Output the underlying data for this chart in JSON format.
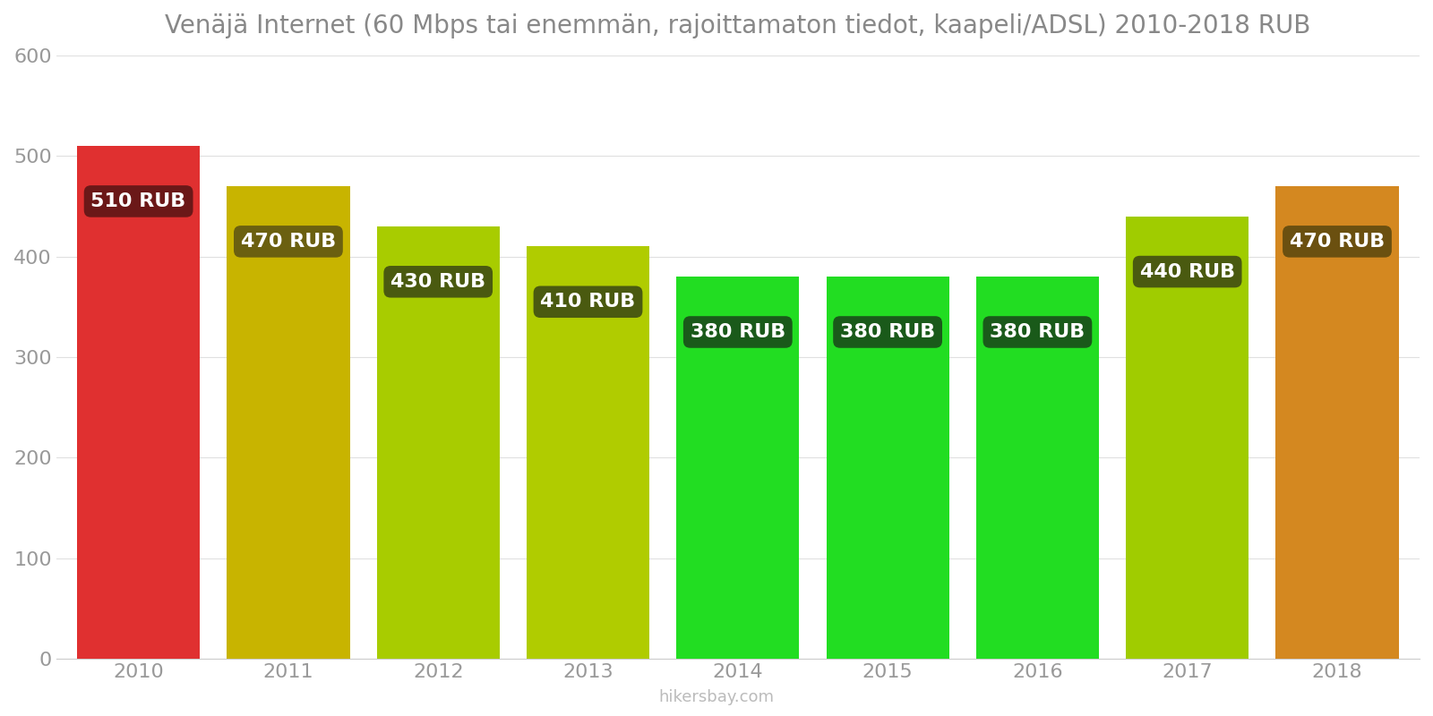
{
  "years": [
    2010,
    2011,
    2012,
    2013,
    2014,
    2015,
    2016,
    2017,
    2018
  ],
  "values": [
    510,
    470,
    430,
    410,
    380,
    380,
    380,
    440,
    470
  ],
  "bar_colors": [
    "#e03030",
    "#c8b400",
    "#a8cc00",
    "#b0cc00",
    "#22dd22",
    "#22dd22",
    "#22dd22",
    "#a0cc00",
    "#d48820"
  ],
  "label_bg_colors": [
    "#6b1818",
    "#6b6010",
    "#4a5a10",
    "#4a5a10",
    "#1a5a1a",
    "#1a5a1a",
    "#1a5a1a",
    "#4a5a10",
    "#6b5010"
  ],
  "title": "Venäjä Internet (60 Mbps tai enemmän, rajoittamaton tiedot, kaapeli/ADSL) 2010-2018 RUB",
  "ylim": [
    0,
    600
  ],
  "yticks": [
    0,
    100,
    200,
    300,
    400,
    500,
    600
  ],
  "background_color": "#ffffff",
  "title_fontsize": 20,
  "tick_fontsize": 16,
  "label_fontsize": 16,
  "watermark": "hikersbay.com"
}
